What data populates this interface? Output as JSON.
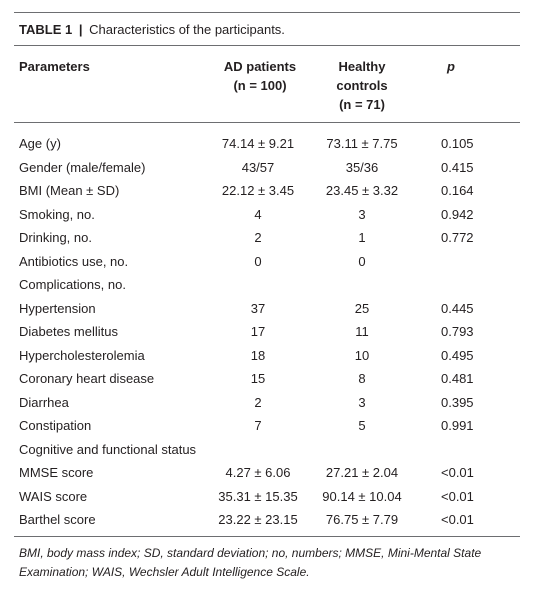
{
  "caption": {
    "label": "TABLE 1",
    "separator": "|",
    "text": "Characteristics of the participants."
  },
  "header": {
    "parameters": "Parameters",
    "ad_line1": "AD patients",
    "ad_line2": "(n = 100)",
    "hc_line1": "Healthy",
    "hc_line2": "controls",
    "hc_line3": "(n = 71)",
    "p": "p"
  },
  "rows": [
    {
      "parameter": "Age (y)",
      "ad": "74.14 ± 9.21",
      "hc": "73.11 ± 7.75",
      "p": "0.105"
    },
    {
      "parameter": "Gender (male/female)",
      "ad": "43/57",
      "hc": "35/36",
      "p": "0.415"
    },
    {
      "parameter": "BMI (Mean ± SD)",
      "ad": "22.12 ± 3.45",
      "hc": "23.45 ± 3.32",
      "p": "0.164"
    },
    {
      "parameter": "Smoking, no.",
      "ad": "4",
      "hc": "3",
      "p": "0.942"
    },
    {
      "parameter": "Drinking, no.",
      "ad": "2",
      "hc": "1",
      "p": "0.772"
    },
    {
      "parameter": "Antibiotics use, no.",
      "ad": "0",
      "hc": "0",
      "p": ""
    },
    {
      "parameter": "Complications, no.",
      "ad": "",
      "hc": "",
      "p": ""
    },
    {
      "parameter": "Hypertension",
      "ad": "37",
      "hc": "25",
      "p": "0.445"
    },
    {
      "parameter": "Diabetes mellitus",
      "ad": "17",
      "hc": "11",
      "p": "0.793"
    },
    {
      "parameter": "Hypercholesterolemia",
      "ad": "18",
      "hc": "10",
      "p": "0.495"
    },
    {
      "parameter": "Coronary heart disease",
      "ad": "15",
      "hc": "8",
      "p": "0.481"
    },
    {
      "parameter": "Diarrhea",
      "ad": "2",
      "hc": "3",
      "p": "0.395"
    },
    {
      "parameter": "Constipation",
      "ad": "7",
      "hc": "5",
      "p": "0.991"
    },
    {
      "parameter": "Cognitive and functional status",
      "ad": "",
      "hc": "",
      "p": ""
    },
    {
      "parameter": "MMSE score",
      "ad": "4.27 ± 6.06",
      "hc": "27.21 ± 2.04",
      "p": "<0.01"
    },
    {
      "parameter": "WAIS score",
      "ad": "35.31 ± 15.35",
      "hc": "90.14 ± 10.04",
      "p": "<0.01"
    },
    {
      "parameter": "Barthel score",
      "ad": "23.22 ± 23.15",
      "hc": "76.75 ± 7.79",
      "p": "<0.01"
    }
  ],
  "footnote": "BMI, body mass index; SD, standard deviation; no, numbers; MMSE, Mini-Mental State Examination; WAIS, Wechsler Adult Intelligence Scale."
}
